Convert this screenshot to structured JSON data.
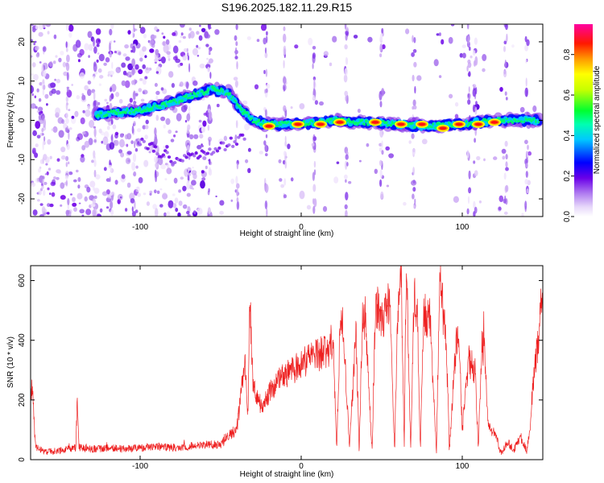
{
  "figure": {
    "title": "S196.2025.182.11.29.R15"
  },
  "chart_data": [
    {
      "type": "heatmap",
      "title": "S196.2025.182.11.29.R15",
      "xlabel": "Height of straight line (km)",
      "ylabel": "Frequency (Hz)",
      "xlim": [
        -168,
        150
      ],
      "ylim": [
        -24.5,
        24.5
      ],
      "x_ticks": [
        -100,
        0,
        100
      ],
      "y_ticks": [
        -20,
        -10,
        0,
        10,
        20
      ],
      "colorbar": {
        "label": "Normalized spectral amplitude",
        "range": [
          0.0,
          0.95
        ],
        "ticks": [
          0.0,
          0.2,
          0.4,
          0.6,
          0.8
        ],
        "colormap": [
          "#ffffff",
          "#d8c0f5",
          "#7a00e6",
          "#0000ff",
          "#00e5ff",
          "#00ff40",
          "#ffff00",
          "#ff7f00",
          "#ff0000",
          "#ff00a0"
        ]
      },
      "ridge": {
        "description_points": [
          [
            -127,
            1.5
          ],
          [
            -115,
            2
          ],
          [
            -100,
            2.5
          ],
          [
            -85,
            4
          ],
          [
            -70,
            6
          ],
          [
            -55,
            8
          ],
          [
            -45,
            7
          ],
          [
            -38,
            3
          ],
          [
            -30,
            0
          ],
          [
            -20,
            -1
          ],
          [
            0,
            -1
          ],
          [
            20,
            0
          ],
          [
            40,
            -0.5
          ],
          [
            60,
            -1
          ],
          [
            80,
            -1.5
          ],
          [
            100,
            -1
          ],
          [
            120,
            0
          ],
          [
            148,
            0
          ]
        ],
        "peak_points": [
          [
            -20,
            -1.5
          ],
          [
            -2,
            -1
          ],
          [
            12,
            -1
          ],
          [
            24,
            -0.5
          ],
          [
            46,
            -0.5
          ],
          [
            62,
            -1
          ],
          [
            75,
            -1
          ],
          [
            88,
            -2
          ],
          [
            98,
            -1
          ],
          [
            110,
            -1
          ],
          [
            120,
            -0.5
          ]
        ]
      },
      "lower_branch": [
        [
          -100,
          -5
        ],
        [
          -80,
          -10
        ],
        [
          -60,
          -8
        ],
        [
          -45,
          -6
        ],
        [
          -35,
          -4
        ]
      ]
    },
    {
      "type": "line",
      "xlabel": "Height of straight line (km)",
      "ylabel": "SNR (10 * v/v)",
      "xlim": [
        -168,
        150
      ],
      "ylim": [
        0,
        650
      ],
      "x_ticks": [
        -100,
        0,
        100
      ],
      "y_ticks": [
        0,
        200,
        400,
        600
      ],
      "series": [
        {
          "color": "#ee2020",
          "x": [
            -168,
            -167,
            -165,
            -160,
            -150,
            -140,
            -139,
            -138,
            -130,
            -120,
            -110,
            -100,
            -90,
            -80,
            -70,
            -60,
            -50,
            -45,
            -40,
            -35,
            -33,
            -32,
            -30,
            -25,
            -20,
            -15,
            -10,
            -5,
            0,
            5,
            10,
            15,
            20,
            22,
            24,
            26,
            30,
            34,
            36,
            38,
            40,
            44,
            46,
            48,
            50,
            55,
            58,
            60,
            62,
            64,
            65,
            66,
            68,
            70,
            72,
            74,
            76,
            80,
            84,
            86,
            88,
            90,
            92,
            96,
            98,
            100,
            104,
            108,
            110,
            112,
            114,
            116,
            118,
            122,
            124,
            128,
            132,
            136,
            140,
            142,
            144,
            146,
            148,
            150
          ],
          "y": [
            200,
            240,
            45,
            25,
            30,
            40,
            200,
            40,
            35,
            40,
            35,
            40,
            45,
            40,
            45,
            50,
            50,
            80,
            100,
            320,
            150,
            560,
            250,
            180,
            220,
            260,
            280,
            300,
            320,
            340,
            350,
            360,
            380,
            30,
            420,
            450,
            40,
            430,
            30,
            470,
            480,
            30,
            490,
            510,
            470,
            540,
            30,
            520,
            650,
            40,
            560,
            500,
            30,
            540,
            510,
            30,
            490,
            470,
            30,
            650,
            500,
            420,
            30,
            380,
            400,
            100,
            330,
            300,
            40,
            380,
            350,
            120,
            100,
            60,
            20,
            60,
            30,
            80,
            30,
            100,
            250,
            350,
            450,
            520
          ]
        }
      ]
    }
  ]
}
